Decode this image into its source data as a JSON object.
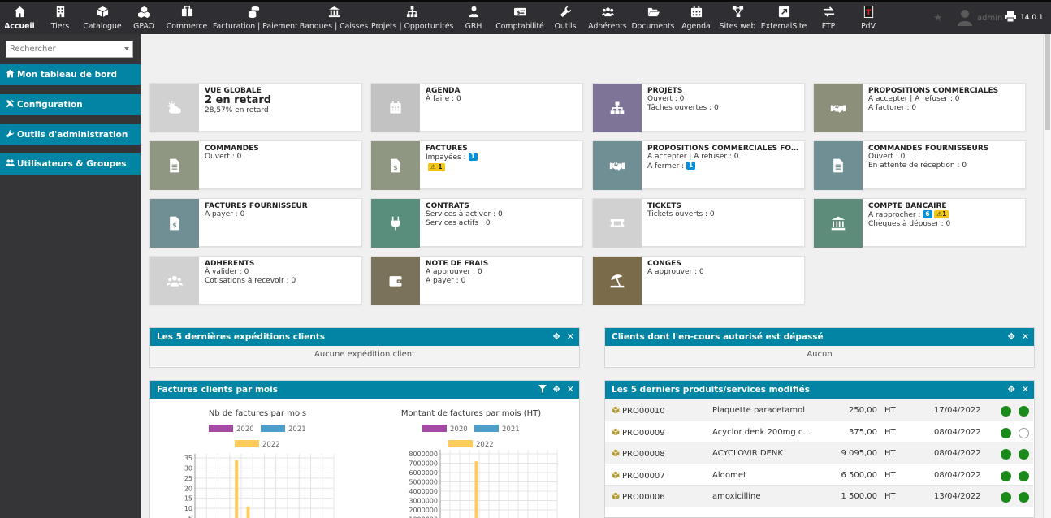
{
  "topmenu": [
    {
      "label": "Accueil",
      "icon": "home-icon"
    },
    {
      "label": "Tiers",
      "icon": "building-icon"
    },
    {
      "label": "Catalogue",
      "icon": "cube-icon"
    },
    {
      "label": "GPAO",
      "icon": "cubes-icon"
    },
    {
      "label": "Commerce",
      "icon": "briefcase-icon"
    },
    {
      "label": "Facturation | Paiement",
      "icon": "coins-icon"
    },
    {
      "label": "Banques | Caisses",
      "icon": "bank-icon"
    },
    {
      "label": "Projets | Opportunités",
      "icon": "sitemap-icon"
    },
    {
      "label": "GRH",
      "icon": "user-tie-icon"
    },
    {
      "label": "Comptabilité",
      "icon": "money-check-icon"
    },
    {
      "label": "Outils",
      "icon": "wrench-icon"
    },
    {
      "label": "Adhérents",
      "icon": "users-icon"
    },
    {
      "label": "Documents",
      "icon": "folder-open-icon"
    },
    {
      "label": "Agenda",
      "icon": "calendar-icon"
    },
    {
      "label": "Sites web",
      "icon": "network-icon"
    },
    {
      "label": "ExternalSite",
      "icon": "external-link-icon"
    },
    {
      "label": "FTP",
      "icon": "exchange-icon"
    },
    {
      "label": "PdV",
      "icon": "takepos-icon"
    }
  ],
  "topright": {
    "user": "admin",
    "version": "14.0.1"
  },
  "sidebar": {
    "search_placeholder": "Rechercher",
    "items": [
      {
        "label": "Mon tableau de bord"
      },
      {
        "label": "Configuration"
      },
      {
        "label": "Outils d'administration"
      },
      {
        "label": "Utilisateurs & Groupes"
      }
    ]
  },
  "cards": {
    "vue_globale": {
      "title": "VUE GLOBALE",
      "big": "2 en retard",
      "sub": "28,57% en retard",
      "color": "#d1d1d1"
    },
    "agenda": {
      "title": "AGENDA",
      "l1": "À faire : 0",
      "color": "#c2c2c2"
    },
    "projets": {
      "title": "PROJETS",
      "l1": "Ouvert : 0",
      "l2": "Tâches ouvertes : 0",
      "color": "#7d7498"
    },
    "propositions": {
      "title": "PROPOSITIONS COMMERCIALES",
      "l1": "A accepter | A refuser : 0",
      "l2": "A facturer : 0",
      "color": "#8c907b"
    },
    "commandes": {
      "title": "COMMANDES",
      "l1": "Ouvert : 0",
      "color": "#8f9782"
    },
    "factures": {
      "title": "FACTURES",
      "l1": "Impayées : ",
      "b1": "1",
      "w1": "1",
      "color": "#8f9782"
    },
    "propositions_fourn": {
      "title": "PROPOSITIONS COMMERCIALES FOURNISSEURS",
      "l1": "A accepter | A refuser : 0",
      "l2": "A fermer : ",
      "b2": "1",
      "color": "#6f8f94"
    },
    "commandes_fourn": {
      "title": "COMMANDES FOURNISSEURS",
      "l1": "Ouvert : 0",
      "l2": "En attente de réception : 0",
      "color": "#6f8f94"
    },
    "factures_fourn": {
      "title": "FACTURES FOURNISSEUR",
      "l1": "A payer : 0",
      "color": "#6f8f94"
    },
    "contrats": {
      "title": "CONTRATS",
      "l1": "Services à activer : 0",
      "l2": "Services actifs : 0",
      "color": "#5a8e7c"
    },
    "tickets": {
      "title": "TICKETS",
      "l1": "Tickets ouverts : 0",
      "color": "#d1d1d1"
    },
    "compte_bancaire": {
      "title": "COMPTE BANCAIRE",
      "l1": "A rapprocher : ",
      "b1": "6",
      "w1": "1",
      "l2": "Chèques à déposer : 0",
      "color": "#5d8d7a"
    },
    "adherents": {
      "title": "ADHERENTS",
      "l1": "À valider : 0",
      "l2": "Cotisations à recevoir : 0",
      "color": "#d1d1d1"
    },
    "note_frais": {
      "title": "NOTE DE FRAIS",
      "l1": "A approuver : 0",
      "l2": "A payer : 0",
      "color": "#7a725a"
    },
    "conges": {
      "title": "CONGES",
      "l1": "A approuver : 0",
      "color": "#7a6c4a"
    }
  },
  "boxes": {
    "expeditions": {
      "title": "Les 5 dernières expéditions clients",
      "empty": "Aucune expédition client"
    },
    "encours": {
      "title": "Clients dont l'en-cours autorisé est dépassé",
      "empty": "Aucun"
    },
    "factures_mois": {
      "title": "Factures clients par mois"
    },
    "produits": {
      "title": "Les 5 derniers produits/services modifiés"
    }
  },
  "products": [
    {
      "ref": "PRO00010",
      "label": "Plaquette paracetamol",
      "price": "250,00",
      "type": "HT",
      "date": "17/04/2022",
      "sell": true,
      "buy": true
    },
    {
      "ref": "PRO00009",
      "label": "Acyclor denk 200mg c…",
      "price": "375,00",
      "type": "HT",
      "date": "08/04/2022",
      "sell": true,
      "buy": false
    },
    {
      "ref": "PRO00008",
      "label": "ACYCLOVIR DENK",
      "price": "9 095,00",
      "type": "HT",
      "date": "08/04/2022",
      "sell": true,
      "buy": true
    },
    {
      "ref": "PRO00007",
      "label": "Aldomet",
      "price": "6 500,00",
      "type": "HT",
      "date": "08/04/2022",
      "sell": true,
      "buy": true
    },
    {
      "ref": "PRO00006",
      "label": "amoxicilline",
      "price": "1 500,00",
      "type": "HT",
      "date": "13/04/2022",
      "sell": true,
      "buy": true
    }
  ],
  "chart_data": [
    {
      "type": "bar",
      "title": "Nb de factures par mois",
      "series": [
        {
          "name": "2020",
          "color": "#a54ba5",
          "values": [
            0,
            0,
            0,
            0,
            0,
            0,
            0,
            0,
            0,
            0,
            0,
            0
          ]
        },
        {
          "name": "2021",
          "color": "#4e9fc8",
          "values": [
            0,
            0,
            0,
            0,
            0,
            0,
            0,
            0,
            0,
            0,
            0,
            0
          ]
        },
        {
          "name": "2022",
          "color": "#ffcb5c",
          "values": [
            0,
            0,
            0,
            34,
            11,
            0,
            0,
            0,
            0,
            0,
            0,
            0
          ]
        }
      ],
      "yticks": [
        "35",
        "30",
        "25",
        "20",
        "15",
        "10",
        "5"
      ],
      "ylim": [
        0,
        35
      ]
    },
    {
      "type": "bar",
      "title": "Montant de factures par mois (HT)",
      "series": [
        {
          "name": "2020",
          "color": "#a54ba5",
          "values": [
            0,
            0,
            0,
            0,
            0,
            0,
            0,
            0,
            0,
            0,
            0,
            0
          ]
        },
        {
          "name": "2021",
          "color": "#4e9fc8",
          "values": [
            0,
            0,
            0,
            0,
            0,
            0,
            0,
            0,
            0,
            0,
            0,
            0
          ]
        },
        {
          "name": "2022",
          "color": "#ffcb5c",
          "values": [
            0,
            0,
            0,
            7200000,
            0,
            0,
            0,
            0,
            0,
            0,
            0,
            0
          ]
        }
      ],
      "yticks": [
        "8000000",
        "7000000",
        "6000000",
        "5000000",
        "4000000",
        "3000000",
        "2000000",
        "1000000"
      ],
      "ylim": [
        0,
        8000000
      ]
    }
  ]
}
